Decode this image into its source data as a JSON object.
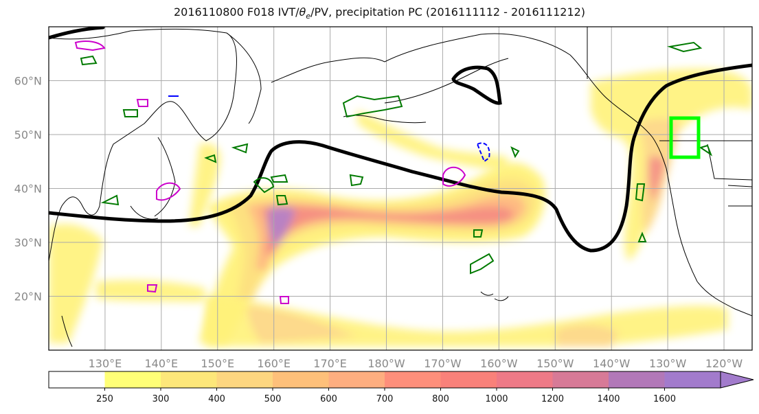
{
  "title": {
    "prefix": "2016110800 F018 IVT/",
    "theta": "θ",
    "theta_sub": "e",
    "suffix": "/PV, precipitation PC (2016111112 - 2016111212)"
  },
  "map": {
    "extent": {
      "lon": [
        120,
        245
      ],
      "lat": [
        10,
        70
      ]
    },
    "lat_ticks": [
      {
        "value": 20,
        "label": "20°N"
      },
      {
        "value": 30,
        "label": "30°N"
      },
      {
        "value": 40,
        "label": "40°N"
      },
      {
        "value": 50,
        "label": "50°N"
      },
      {
        "value": 60,
        "label": "60°N"
      }
    ],
    "lon_ticks": [
      {
        "value": 130,
        "label": "130°E"
      },
      {
        "value": 140,
        "label": "140°E"
      },
      {
        "value": 150,
        "label": "150°E"
      },
      {
        "value": 160,
        "label": "160°E"
      },
      {
        "value": 170,
        "label": "170°E"
      },
      {
        "value": 180,
        "label": "180°W"
      },
      {
        "value": 190,
        "label": "170°W"
      },
      {
        "value": 200,
        "label": "160°W"
      },
      {
        "value": 210,
        "label": "150°W"
      },
      {
        "value": 220,
        "label": "140°W"
      },
      {
        "value": 230,
        "label": "130°W"
      },
      {
        "value": 240,
        "label": "120°W"
      }
    ],
    "grid": true,
    "target_box_color": "#00ff00",
    "pv_contour_color": "#000000",
    "precip_pc_colors": {
      "positive": "#007a00",
      "negative": "#0000ff",
      "highlight": "#cc00cc"
    }
  },
  "colorbar": {
    "levels": [
      250,
      300,
      400,
      500,
      600,
      700,
      800,
      1000,
      1200,
      1400,
      1600
    ],
    "labels": [
      "250",
      "300",
      "400",
      "500",
      "600",
      "700",
      "800",
      "1000",
      "1200",
      "1400",
      "1600"
    ],
    "colors": [
      "#ffffff",
      "#ffff77",
      "#fde77a",
      "#fdd680",
      "#fec07a",
      "#feae80",
      "#fe8f7b",
      "#f9817a",
      "#ee7a87",
      "#d77a97",
      "#b278b8",
      "#a27bcc"
    ],
    "extend": "max"
  }
}
